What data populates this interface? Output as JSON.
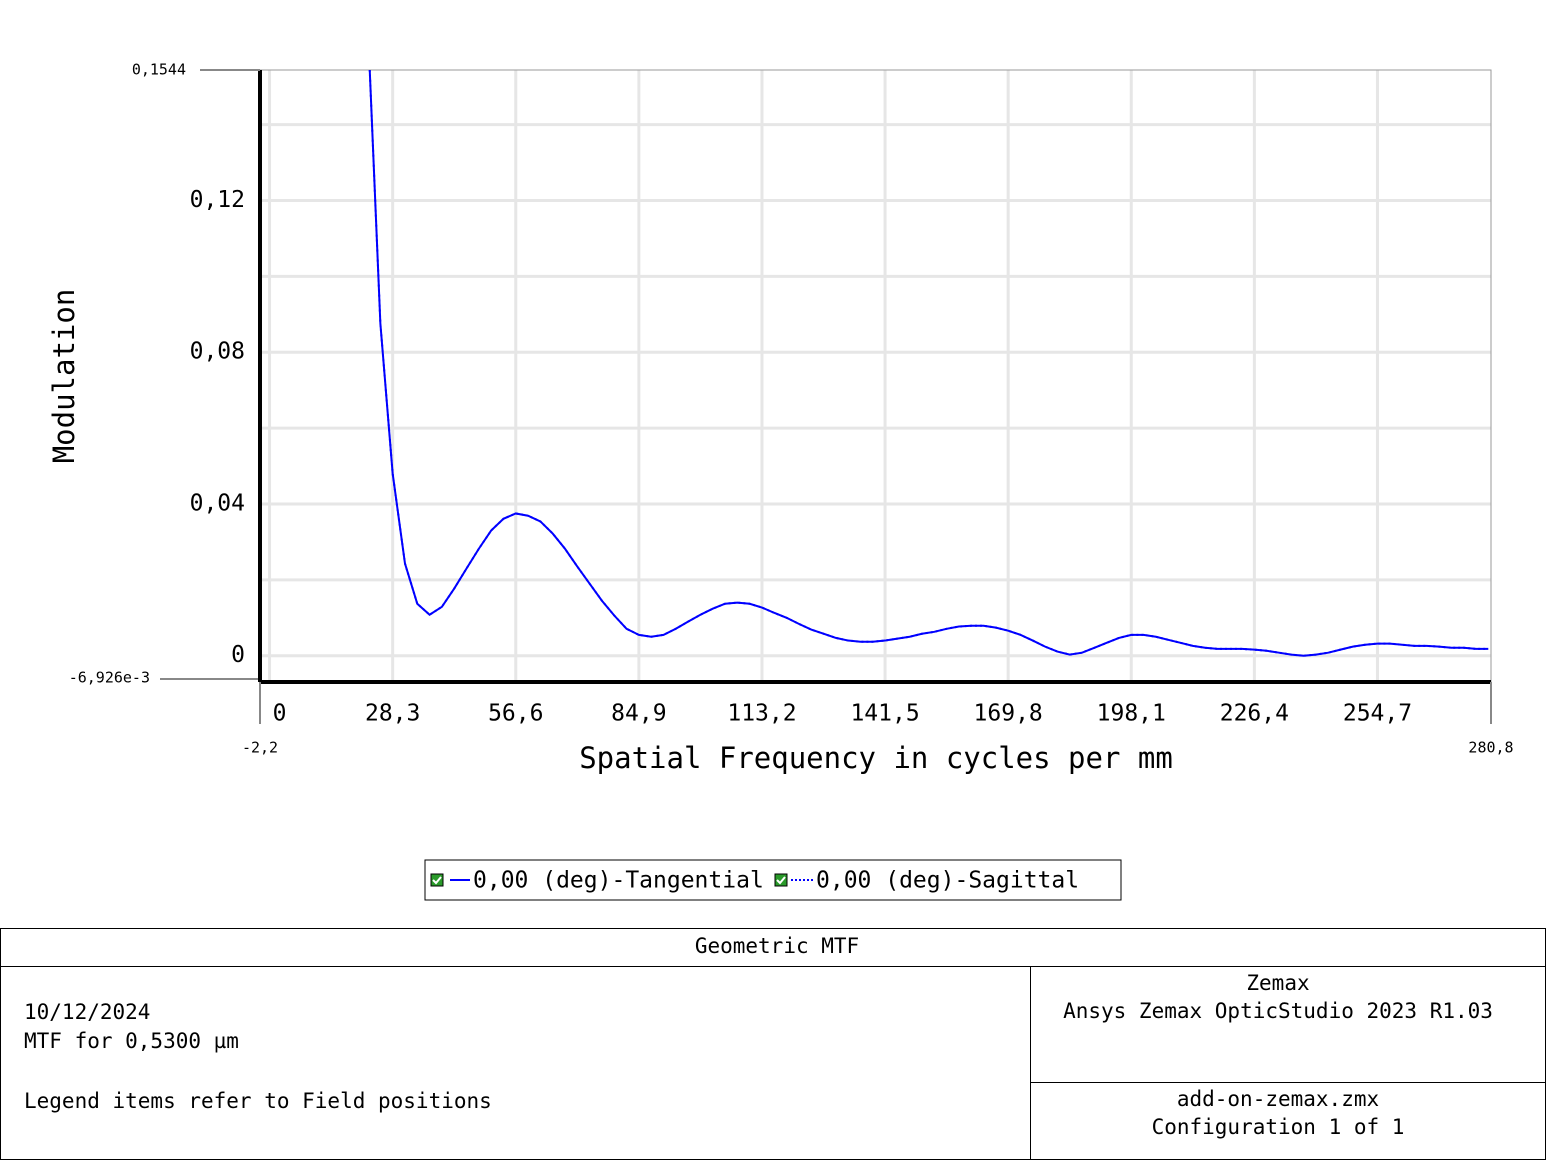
{
  "chart_data": {
    "type": "line",
    "x_label": "Spatial Frequency in cycles per mm",
    "y_label": "Modulation",
    "xlim": [
      -2.2,
      280.8
    ],
    "xlim_labels": [
      "-2,2",
      "280,8"
    ],
    "ylim": [
      -0.006926,
      0.1544
    ],
    "ylim_labels": [
      "-6,926e-3",
      "0,1544"
    ],
    "xticks": [
      0,
      {
        "value": 28.3,
        "label": "28,3"
      },
      {
        "value": 56.6,
        "label": "56,6"
      },
      {
        "value": 84.9,
        "label": "84,9"
      },
      {
        "value": 113.2,
        "label": "113,2"
      },
      {
        "value": 141.5,
        "label": "141,5"
      },
      {
        "value": 169.8,
        "label": "169,8"
      },
      {
        "value": 198.1,
        "label": "198,1"
      },
      {
        "value": 226.4,
        "label": "226,4"
      },
      {
        "value": 254.7,
        "label": "254,7"
      }
    ],
    "yticks": [
      0,
      {
        "value": 0.04,
        "label": "0,04"
      },
      {
        "value": 0.08,
        "label": "0,08"
      },
      {
        "value": 0.12,
        "label": "0,12"
      }
    ],
    "yminor": [
      0.02,
      0.06,
      0.1,
      0.14
    ],
    "grid": true,
    "x": [
      22.64,
      25.47,
      28.3,
      31.13,
      33.96,
      36.79,
      39.62,
      42.45,
      45.28,
      48.11,
      50.94,
      53.77,
      56.6,
      59.43,
      62.26,
      65.09,
      67.92,
      70.75,
      73.58,
      76.41,
      79.24,
      82.07,
      84.9,
      87.73,
      90.56,
      93.39,
      96.22,
      99.05,
      101.88,
      104.71,
      107.54,
      110.37,
      113.2,
      116.03,
      118.86,
      121.69,
      124.52,
      127.35,
      130.18,
      133.01,
      135.84,
      138.67,
      141.5,
      144.33,
      147.16,
      149.99,
      152.82,
      155.65,
      158.48,
      161.31,
      164.14,
      166.97,
      169.8,
      172.63,
      175.46,
      178.29,
      181.12,
      183.95,
      186.78,
      189.61,
      192.44,
      195.27,
      198.1,
      200.93,
      203.76,
      206.59,
      209.42,
      212.25,
      215.08,
      217.91,
      220.74,
      223.57,
      226.4,
      229.23,
      232.06,
      234.89,
      237.72,
      240.55,
      243.38,
      246.21,
      249.04,
      251.87,
      254.7,
      257.53,
      260.36,
      263.19,
      266.02,
      268.85,
      271.68,
      274.51,
      277.34,
      280.17
    ],
    "series": [
      {
        "name": "0,00 (deg)-Tangential",
        "color": "#0000ff",
        "line_style": "solid",
        "values": [
          0.165,
          0.0876,
          0.048,
          0.0243,
          0.0137,
          0.0108,
          0.0129,
          0.0177,
          0.023,
          0.0282,
          0.033,
          0.0361,
          0.0375,
          0.0369,
          0.0354,
          0.0322,
          0.0282,
          0.0235,
          0.019,
          0.0145,
          0.0106,
          0.0071,
          0.0055,
          0.005,
          0.0055,
          0.0071,
          0.009,
          0.0108,
          0.0124,
          0.0137,
          0.014,
          0.0137,
          0.0127,
          0.0113,
          0.01,
          0.0084,
          0.0069,
          0.0058,
          0.0047,
          0.004,
          0.0037,
          0.0037,
          0.004,
          0.0045,
          0.005,
          0.0058,
          0.0063,
          0.0071,
          0.0077,
          0.0079,
          0.0079,
          0.0074,
          0.0066,
          0.0055,
          0.004,
          0.0024,
          0.0011,
          0.0003,
          0.0008,
          0.0021,
          0.0034,
          0.0047,
          0.0055,
          0.0055,
          0.005,
          0.0042,
          0.0034,
          0.0026,
          0.0021,
          0.0018,
          0.0018,
          0.0018,
          0.0016,
          0.0013,
          0.0008,
          0.0003,
          0,
          0.0003,
          0.0008,
          0.0016,
          0.0024,
          0.0029,
          0.0032,
          0.0032,
          0.0029,
          0.0026,
          0.0026,
          0.0024,
          0.0021,
          0.0021,
          0.0018,
          0.0018
        ]
      },
      {
        "name": "0,00 (deg)-Sagittal",
        "color": "#0000ff",
        "line_style": "dotted",
        "values": [
          0.165,
          0.0876,
          0.048,
          0.0243,
          0.0137,
          0.0108,
          0.0129,
          0.0177,
          0.023,
          0.0282,
          0.033,
          0.0361,
          0.0375,
          0.0369,
          0.0354,
          0.0322,
          0.0282,
          0.0235,
          0.019,
          0.0145,
          0.0106,
          0.0071,
          0.0055,
          0.005,
          0.0055,
          0.0071,
          0.009,
          0.0108,
          0.0124,
          0.0137,
          0.014,
          0.0137,
          0.0127,
          0.0113,
          0.01,
          0.0084,
          0.0069,
          0.0058,
          0.0047,
          0.004,
          0.0037,
          0.0037,
          0.004,
          0.0045,
          0.005,
          0.0058,
          0.0063,
          0.0071,
          0.0077,
          0.0079,
          0.0079,
          0.0074,
          0.0066,
          0.0055,
          0.004,
          0.0024,
          0.0011,
          0.0003,
          0.0008,
          0.0021,
          0.0034,
          0.0047,
          0.0055,
          0.0055,
          0.005,
          0.0042,
          0.0034,
          0.0026,
          0.0021,
          0.0018,
          0.0018,
          0.0018,
          0.0016,
          0.0013,
          0.0008,
          0.0003,
          0,
          0.0003,
          0.0008,
          0.0016,
          0.0024,
          0.0029,
          0.0032,
          0.0032,
          0.0029,
          0.0026,
          0.0026,
          0.0024,
          0.0021,
          0.0021,
          0.0018,
          0.0018
        ]
      }
    ]
  },
  "footer": {
    "title": "Geometric MTF",
    "date": "10/12/2024",
    "wavelength": "MTF for 0,5300 µm",
    "note": "Legend items refer to Field positions",
    "company": "Zemax",
    "software": "Ansys Zemax OpticStudio 2023 R1.03",
    "file": "add-on-zemax.zmx",
    "configuration": "Configuration 1 of 1"
  }
}
